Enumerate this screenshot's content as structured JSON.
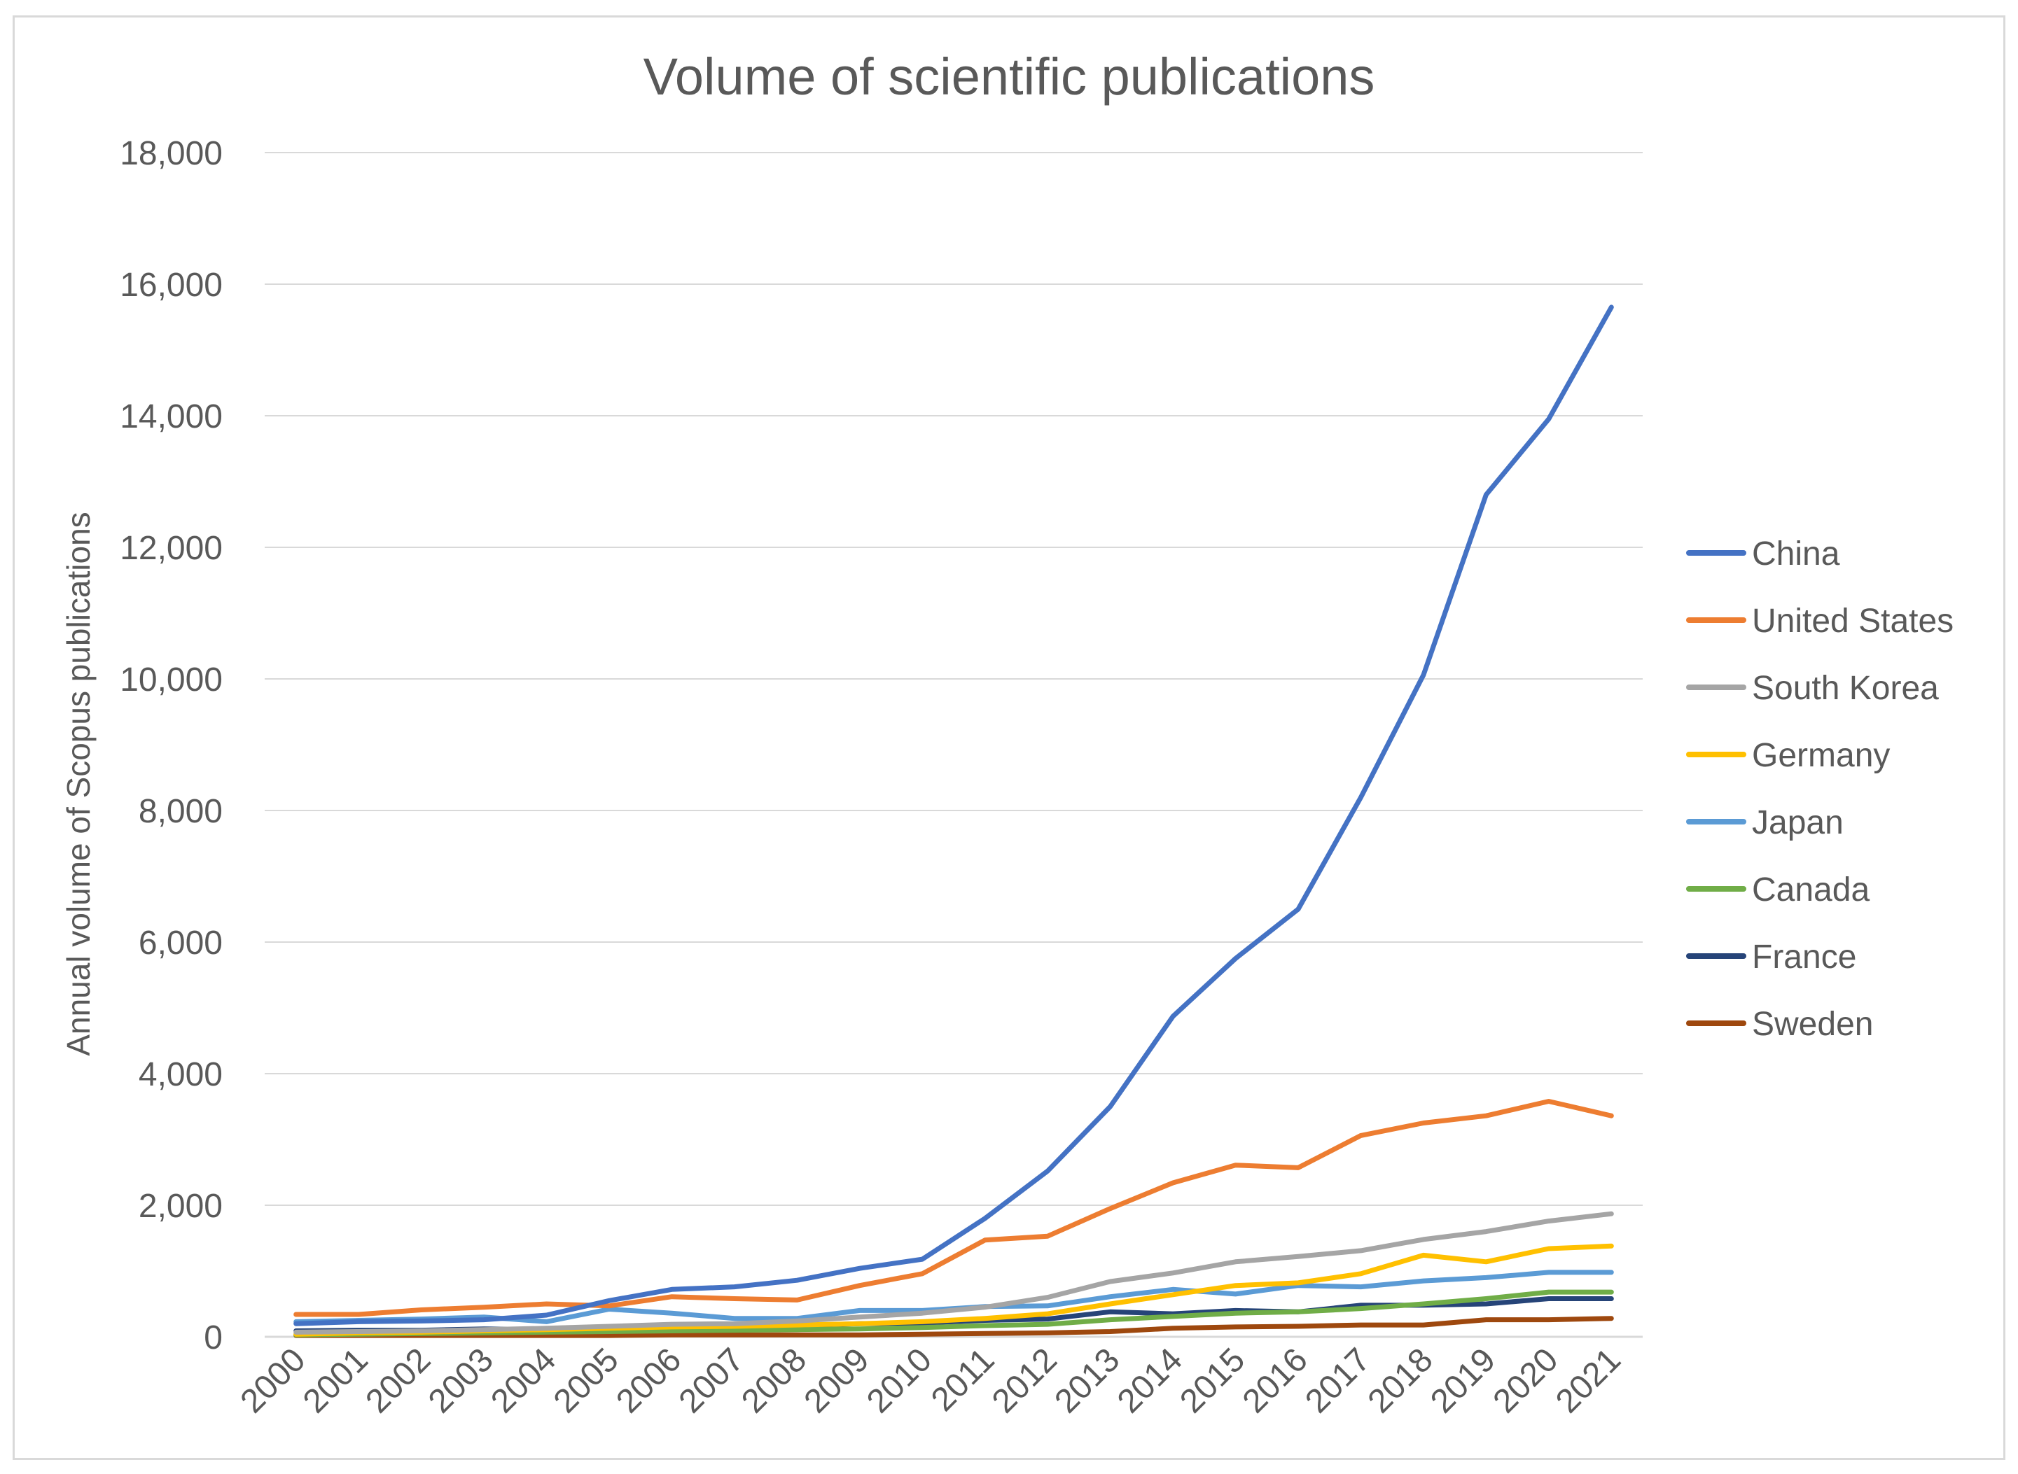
{
  "chart_data": {
    "type": "line",
    "title": "Volume of scientific publications",
    "xlabel": "",
    "ylabel": "Annual volume of Scopus publications",
    "ylim": [
      0,
      18000
    ],
    "yticks": [
      0,
      2000,
      4000,
      6000,
      8000,
      10000,
      12000,
      14000,
      16000,
      18000
    ],
    "ytick_labels": [
      "0",
      "2,000",
      "4,000",
      "6,000",
      "8,000",
      "10,000",
      "12,000",
      "14,000",
      "16,000",
      "18,000"
    ],
    "categories": [
      "2000",
      "2001",
      "2002",
      "2003",
      "2004",
      "2005",
      "2006",
      "2007",
      "2008",
      "2009",
      "2010",
      "2011",
      "2012",
      "2013",
      "2014",
      "2015",
      "2016",
      "2017",
      "2018",
      "2019",
      "2020",
      "2021"
    ],
    "grid": true,
    "legend_position": "right",
    "series": [
      {
        "name": "China",
        "color": "#4472c4",
        "values": [
          200,
          230,
          240,
          260,
          330,
          550,
          720,
          760,
          860,
          1040,
          1180,
          1800,
          2520,
          3500,
          4870,
          5750,
          6500,
          8200,
          10060,
          12800,
          13950,
          15650
        ]
      },
      {
        "name": "United States",
        "color": "#ed7d31",
        "values": [
          340,
          340,
          410,
          450,
          500,
          470,
          610,
          580,
          560,
          780,
          960,
          1470,
          1530,
          1950,
          2340,
          2610,
          2570,
          3060,
          3250,
          3360,
          3580,
          3360
        ]
      },
      {
        "name": "South Korea",
        "color": "#a5a5a5",
        "values": [
          70,
          80,
          90,
          110,
          130,
          160,
          190,
          200,
          240,
          300,
          360,
          450,
          600,
          840,
          970,
          1140,
          1220,
          1310,
          1480,
          1600,
          1760,
          1870
        ]
      },
      {
        "name": "Germany",
        "color": "#ffc000",
        "values": [
          40,
          60,
          70,
          90,
          110,
          130,
          150,
          160,
          180,
          200,
          230,
          280,
          350,
          500,
          640,
          780,
          820,
          960,
          1240,
          1140,
          1340,
          1380
        ]
      },
      {
        "name": "Japan",
        "color": "#5b9bd5",
        "values": [
          230,
          250,
          270,
          300,
          230,
          420,
          360,
          280,
          280,
          400,
          400,
          460,
          470,
          610,
          720,
          650,
          780,
          760,
          850,
          900,
          980,
          980
        ]
      },
      {
        "name": "Canada",
        "color": "#70ad47",
        "values": [
          30,
          40,
          50,
          60,
          70,
          80,
          90,
          100,
          110,
          120,
          140,
          170,
          190,
          260,
          310,
          360,
          380,
          430,
          500,
          580,
          680,
          680
        ]
      },
      {
        "name": "France",
        "color": "#264478",
        "values": [
          90,
          100,
          100,
          120,
          110,
          120,
          180,
          150,
          170,
          200,
          210,
          250,
          270,
          380,
          350,
          400,
          380,
          480,
          480,
          500,
          580,
          580
        ]
      },
      {
        "name": "Sweden",
        "color": "#9e480e",
        "values": [
          20,
          20,
          20,
          20,
          20,
          20,
          30,
          30,
          30,
          30,
          40,
          50,
          60,
          80,
          130,
          150,
          160,
          180,
          180,
          260,
          260,
          280
        ]
      }
    ]
  }
}
